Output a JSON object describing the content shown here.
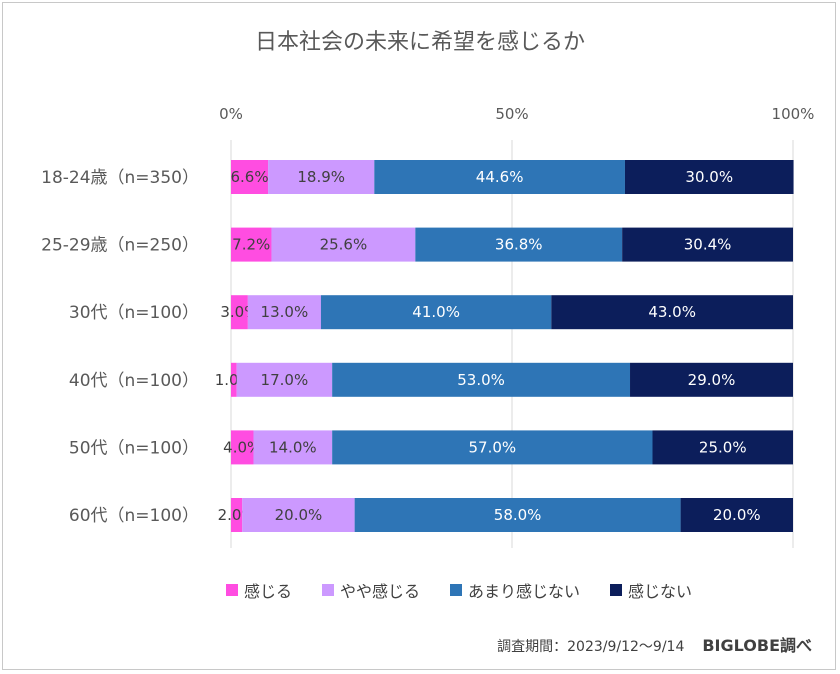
{
  "chart_data": {
    "type": "bar",
    "orientation": "horizontal",
    "stacked": "percent",
    "title": "日本社会の未来に希望を感じるか",
    "x_ticks": [
      "0%",
      "50%",
      "100%"
    ],
    "xlim": [
      0,
      100
    ],
    "categories": [
      "18-24歳（n=350）",
      "25-29歳（n=250）",
      "30代（n=100）",
      "40代（n=100）",
      "50代（n=100）",
      "60代（n=100）"
    ],
    "series": [
      {
        "name": "感じる",
        "color": "#ff4de1",
        "values": [
          6.6,
          7.2,
          3.0,
          1.0,
          4.0,
          2.0
        ],
        "labels": [
          "6.6%",
          "7.2%",
          "3.0%",
          "1.0%",
          "4.0%",
          "2.0%"
        ]
      },
      {
        "name": "やや感じる",
        "color": "#cc99ff",
        "values": [
          18.9,
          25.6,
          13.0,
          17.0,
          14.0,
          20.0
        ],
        "labels": [
          "18.9%",
          "25.6%",
          "13.0%",
          "17.0%",
          "14.0%",
          "20.0%"
        ]
      },
      {
        "name": "あまり感じない",
        "color": "#2e75b6",
        "values": [
          44.6,
          36.8,
          41.0,
          53.0,
          57.0,
          58.0
        ],
        "labels": [
          "44.6%",
          "36.8%",
          "41.0%",
          "53.0%",
          "57.0%",
          "58.0%"
        ]
      },
      {
        "name": "感じない",
        "color": "#0c1e5b",
        "values": [
          30.0,
          30.4,
          43.0,
          29.0,
          25.0,
          20.0
        ],
        "labels": [
          "30.0%",
          "30.4%",
          "43.0%",
          "29.0%",
          "25.0%",
          "20.0%"
        ]
      }
    ],
    "legend_position": "bottom"
  },
  "footer": {
    "survey_period": "調査期間：2023/9/12～9/14",
    "brand": "BIGLOBE調べ"
  }
}
